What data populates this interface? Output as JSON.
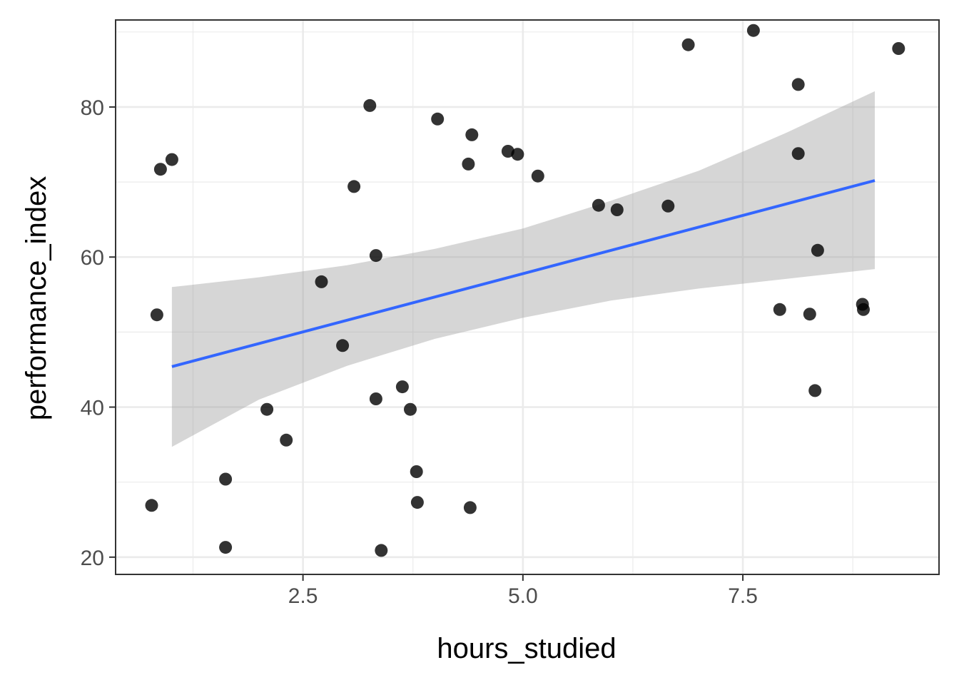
{
  "chart_data": {
    "type": "scatter",
    "title": "",
    "xlabel": "hours_studied",
    "ylabel": "performance_index",
    "xlim": [
      0.37,
      9.73
    ],
    "ylim": [
      17.7,
      91.6
    ],
    "x_major_ticks": [
      2.5,
      5.0,
      7.5
    ],
    "x_tick_labels": [
      "2.5",
      "5.0",
      "7.5"
    ],
    "x_minor_ticks": [
      1.25,
      3.75,
      6.25,
      8.75
    ],
    "y_major_ticks": [
      20,
      40,
      60,
      80
    ],
    "y_tick_labels": [
      "20",
      "40",
      "60",
      "80"
    ],
    "y_minor_ticks": [
      30,
      50,
      70,
      90
    ],
    "grid": true,
    "legend": "none",
    "colors": {
      "points": "#000000",
      "trend_line": "#3366FF",
      "confidence_band": "#999999",
      "grid": "#ebebeb",
      "panel_border": "#333333"
    },
    "series": [
      {
        "points": [
          {
            "x": 0.78,
            "y": 26.9
          },
          {
            "x": 0.88,
            "y": 71.7
          },
          {
            "x": 1.01,
            "y": 73.0
          },
          {
            "x": 0.84,
            "y": 52.3
          },
          {
            "x": 1.62,
            "y": 30.4
          },
          {
            "x": 1.62,
            "y": 21.3
          },
          {
            "x": 2.09,
            "y": 39.7
          },
          {
            "x": 2.31,
            "y": 35.6
          },
          {
            "x": 2.71,
            "y": 56.7
          },
          {
            "x": 2.95,
            "y": 48.2
          },
          {
            "x": 3.08,
            "y": 69.4
          },
          {
            "x": 3.26,
            "y": 80.2
          },
          {
            "x": 3.33,
            "y": 60.2
          },
          {
            "x": 3.33,
            "y": 41.1
          },
          {
            "x": 3.39,
            "y": 20.9
          },
          {
            "x": 3.63,
            "y": 42.7
          },
          {
            "x": 3.72,
            "y": 39.7
          },
          {
            "x": 3.79,
            "y": 31.4
          },
          {
            "x": 3.8,
            "y": 27.3
          },
          {
            "x": 4.03,
            "y": 78.4
          },
          {
            "x": 4.38,
            "y": 72.4
          },
          {
            "x": 4.4,
            "y": 26.6
          },
          {
            "x": 4.42,
            "y": 76.3
          },
          {
            "x": 4.83,
            "y": 74.1
          },
          {
            "x": 4.94,
            "y": 73.7
          },
          {
            "x": 5.17,
            "y": 70.8
          },
          {
            "x": 5.86,
            "y": 66.9
          },
          {
            "x": 6.07,
            "y": 66.3
          },
          {
            "x": 6.65,
            "y": 66.8
          },
          {
            "x": 6.88,
            "y": 88.3
          },
          {
            "x": 7.62,
            "y": 90.2
          },
          {
            "x": 7.92,
            "y": 53.0
          },
          {
            "x": 8.13,
            "y": 83.0
          },
          {
            "x": 8.13,
            "y": 73.8
          },
          {
            "x": 8.26,
            "y": 52.4
          },
          {
            "x": 8.32,
            "y": 42.2
          },
          {
            "x": 8.35,
            "y": 60.9
          },
          {
            "x": 8.86,
            "y": 53.7
          },
          {
            "x": 8.87,
            "y": 53.0
          },
          {
            "x": 9.27,
            "y": 87.8
          }
        ]
      }
    ],
    "trend_line": {
      "method": "linear",
      "x": [
        1.01,
        9.0
      ],
      "y": [
        45.4,
        70.2
      ],
      "confidence_band": {
        "x": [
          1.01,
          2.0,
          3.0,
          4.0,
          5.0,
          6.0,
          7.0,
          8.0,
          9.0
        ],
        "lower": [
          34.7,
          41.0,
          45.5,
          49.1,
          51.9,
          54.2,
          55.8,
          57.1,
          58.4
        ],
        "upper": [
          56.0,
          57.3,
          58.9,
          61.1,
          63.8,
          67.5,
          71.5,
          76.6,
          82.1
        ]
      }
    }
  }
}
